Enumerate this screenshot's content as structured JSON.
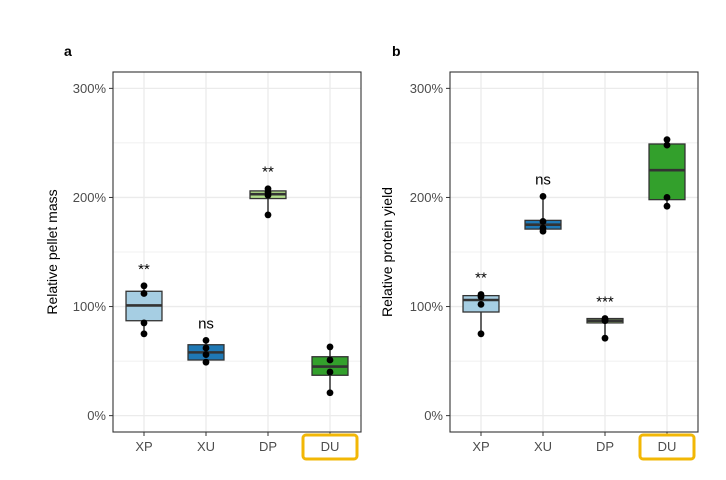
{
  "chart_data": [
    {
      "panel": "a",
      "type": "box",
      "title": "",
      "xlabel": "",
      "ylabel": "Relative pellet mass",
      "ylim": [
        -15,
        315
      ],
      "yticks": [
        0,
        100,
        200,
        300
      ],
      "ytick_labels": [
        "0%",
        "100%",
        "200%",
        "300%"
      ],
      "categories": [
        "XP",
        "XU",
        "DP",
        "DU"
      ],
      "highlighted_category": "DU",
      "groups": [
        {
          "name": "XP",
          "color": "#a6cee3",
          "q1": 87,
          "median": 101,
          "q3": 114,
          "whisker_low": 75,
          "whisker_high": 119,
          "points": [
            75,
            85,
            112,
            119
          ],
          "significance": "**"
        },
        {
          "name": "XU",
          "color": "#1f78b4",
          "q1": 51,
          "median": 58,
          "q3": 65,
          "whisker_low": 49,
          "whisker_high": 69,
          "points": [
            49,
            56,
            62,
            69
          ],
          "significance": "ns"
        },
        {
          "name": "DP",
          "color": "#b2df8a",
          "q1": 199,
          "median": 203,
          "q3": 206,
          "whisker_low": 184,
          "whisker_high": 208,
          "points": [
            184,
            202,
            205,
            208
          ],
          "significance": "**"
        },
        {
          "name": "DU",
          "color": "#33a02c",
          "q1": 37,
          "median": 45,
          "q3": 54,
          "whisker_low": 21,
          "whisker_high": 63,
          "points": [
            21,
            40,
            51,
            63
          ],
          "significance": ""
        }
      ]
    },
    {
      "panel": "b",
      "type": "box",
      "title": "",
      "xlabel": "",
      "ylabel": "Relative protein yield",
      "ylim": [
        -15,
        315
      ],
      "yticks": [
        0,
        100,
        200,
        300
      ],
      "ytick_labels": [
        "0%",
        "100%",
        "200%",
        "300%"
      ],
      "categories": [
        "XP",
        "XU",
        "DP",
        "DU"
      ],
      "highlighted_category": "DU",
      "groups": [
        {
          "name": "XP",
          "color": "#a6cee3",
          "q1": 95,
          "median": 106,
          "q3": 110,
          "whisker_low": 75,
          "whisker_high": 111,
          "points": [
            75,
            102,
            109,
            111
          ],
          "significance": "**"
        },
        {
          "name": "XU",
          "color": "#1f78b4",
          "q1": 171,
          "median": 175,
          "q3": 179,
          "whisker_low": 169,
          "whisker_high": 201,
          "points": [
            169,
            172,
            178,
            201
          ],
          "significance": "ns"
        },
        {
          "name": "DP",
          "color": "#b2df8a",
          "q1": 85,
          "median": 87,
          "q3": 89,
          "whisker_low": 71,
          "whisker_high": 89,
          "points": [
            71,
            87,
            88,
            89
          ],
          "significance": "***"
        },
        {
          "name": "DU",
          "color": "#33a02c",
          "q1": 198,
          "median": 225,
          "q3": 249,
          "whisker_low": 192,
          "whisker_high": 253,
          "points": [
            192,
            200,
            248,
            253
          ],
          "significance": ""
        }
      ]
    }
  ],
  "colors": {
    "grid": "#ebebeb",
    "border": "#333333",
    "highlight": "#f2b705",
    "point": "#000000"
  }
}
